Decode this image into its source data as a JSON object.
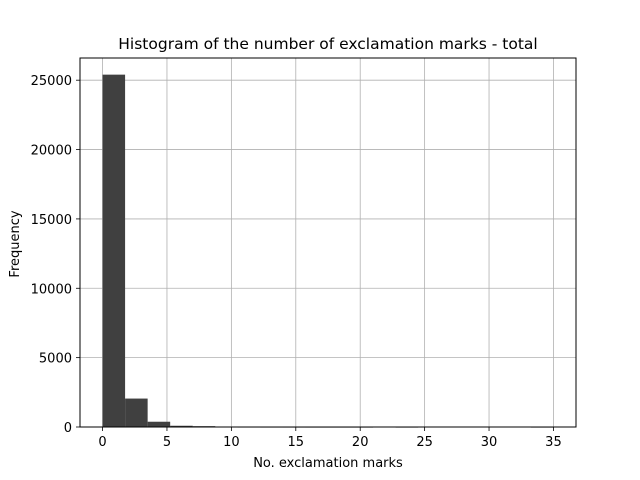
{
  "chart_data": {
    "type": "bar",
    "title": "Histogram of the number of exclamation marks - total",
    "xlabel": "No. exclamation marks",
    "ylabel": "Frequency",
    "xlim": [
      -1.75,
      36.75
    ],
    "ylim": [
      0,
      26600
    ],
    "xticks": [
      0,
      5,
      10,
      15,
      20,
      25,
      30,
      35
    ],
    "yticks": [
      0,
      5000,
      10000,
      15000,
      20000,
      25000
    ],
    "grid": true,
    "bar_color": "#404040",
    "bins": [
      {
        "x0": 0.0,
        "x1": 1.75,
        "count": 25400
      },
      {
        "x0": 1.75,
        "x1": 3.5,
        "count": 2050
      },
      {
        "x0": 3.5,
        "x1": 5.25,
        "count": 380
      },
      {
        "x0": 5.25,
        "x1": 7.0,
        "count": 90
      },
      {
        "x0": 7.0,
        "x1": 8.75,
        "count": 60
      },
      {
        "x0": 8.75,
        "x1": 10.5,
        "count": 10
      },
      {
        "x0": 10.5,
        "x1": 12.25,
        "count": 5
      },
      {
        "x0": 12.25,
        "x1": 14.0,
        "count": 3
      },
      {
        "x0": 14.0,
        "x1": 15.75,
        "count": 2
      },
      {
        "x0": 15.75,
        "x1": 17.5,
        "count": 1
      },
      {
        "x0": 17.5,
        "x1": 19.25,
        "count": 1
      },
      {
        "x0": 19.25,
        "x1": 21.0,
        "count": 1
      },
      {
        "x0": 21.0,
        "x1": 22.75,
        "count": 0
      },
      {
        "x0": 22.75,
        "x1": 24.5,
        "count": 1
      },
      {
        "x0": 24.5,
        "x1": 26.25,
        "count": 0
      },
      {
        "x0": 26.25,
        "x1": 28.0,
        "count": 0
      },
      {
        "x0": 28.0,
        "x1": 29.75,
        "count": 0
      },
      {
        "x0": 29.75,
        "x1": 31.5,
        "count": 0
      },
      {
        "x0": 31.5,
        "x1": 33.25,
        "count": 0
      },
      {
        "x0": 33.25,
        "x1": 35.0,
        "count": 1
      }
    ]
  }
}
